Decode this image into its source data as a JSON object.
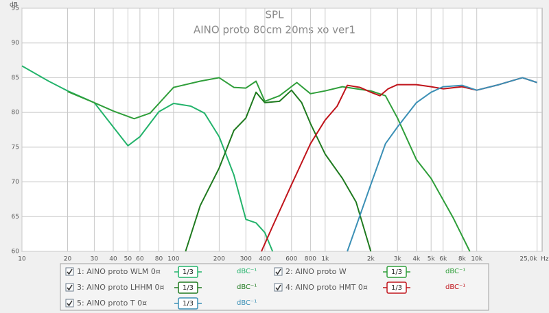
{
  "chart_data": {
    "type": "line",
    "title": "SPL",
    "subtitle": "AINO proto 80cm 20ms xo ver1",
    "y_label": "dB",
    "x_label": "Hz",
    "xscale": "log",
    "grid": true,
    "xlim": [
      10,
      27000
    ],
    "ylim": [
      60,
      95
    ],
    "xticks": [
      10,
      20,
      30,
      40,
      50,
      60,
      80,
      100,
      200,
      300,
      400,
      600,
      800,
      {
        "value": 1000,
        "label": "1k"
      },
      {
        "value": 2000,
        "label": "2k"
      },
      {
        "value": 3000,
        "label": "3k"
      },
      {
        "value": 4000,
        "label": "4k"
      },
      {
        "value": 5000,
        "label": "5k"
      },
      {
        "value": 6000,
        "label": "6k"
      },
      {
        "value": 8000,
        "label": "8k"
      },
      {
        "value": 10000,
        "label": "10k"
      },
      {
        "value": 25000,
        "label": "25,0k"
      }
    ],
    "yticks": [
      60,
      65,
      70,
      75,
      80,
      85,
      90,
      95
    ],
    "series": [
      {
        "name": "1: AINO proto WLM 0¤",
        "color": "#23b36b",
        "smoothing": "1/3",
        "units": "dBC⁻¹",
        "x": [
          10,
          15,
          20,
          30,
          40,
          50,
          60,
          80,
          100,
          130,
          160,
          200,
          250,
          300,
          350,
          400,
          450
        ],
        "values": [
          86.7,
          84.5,
          83.1,
          81.4,
          77.9,
          75.2,
          76.5,
          80.1,
          81.3,
          80.9,
          79.9,
          76.5,
          71.0,
          64.6,
          64.1,
          62.7,
          60
        ]
      },
      {
        "name": "2: AINO proto W",
        "color": "#2f9e3a",
        "smoothing": "1/3",
        "units": "dBC⁻¹",
        "x": [
          20,
          30,
          40,
          55,
          70,
          100,
          150,
          200,
          250,
          300,
          350,
          400,
          500,
          650,
          800,
          1000,
          1300,
          2000,
          2500,
          3000,
          4000,
          5000,
          7000,
          9000
        ],
        "values": [
          83.0,
          81.4,
          80.2,
          79.1,
          79.9,
          83.6,
          84.5,
          85.0,
          83.6,
          83.5,
          84.5,
          81.6,
          82.4,
          84.3,
          82.7,
          83.1,
          83.7,
          83.1,
          82.4,
          79.2,
          73.2,
          70.5,
          64.8,
          60
        ]
      },
      {
        "name": "3: AINO proto LHHM 0¤",
        "color": "#1f7a1f",
        "smoothing": "1/3",
        "units": "dBC⁻¹",
        "x": [
          120,
          150,
          200,
          250,
          300,
          350,
          400,
          500,
          600,
          700,
          800,
          1000,
          1300,
          1600,
          2000
        ],
        "values": [
          60,
          66.6,
          72.0,
          77.4,
          79.2,
          82.9,
          81.4,
          81.6,
          83.2,
          81.4,
          78.4,
          74.0,
          70.5,
          67.1,
          60
        ]
      },
      {
        "name": "4: AINO proto HMT 0¤",
        "color": "#c0141b",
        "smoothing": "1/3",
        "units": "dBC⁻¹",
        "x": [
          380,
          450,
          600,
          800,
          1000,
          1200,
          1400,
          1700,
          2000,
          2300,
          2600,
          3000,
          4000,
          5000,
          6000,
          8000,
          10000,
          14000,
          20000,
          25000
        ],
        "values": [
          60,
          63.6,
          69.6,
          75.5,
          78.9,
          80.9,
          83.9,
          83.6,
          82.9,
          82.4,
          83.4,
          84.0,
          84.0,
          83.7,
          83.4,
          83.7,
          83.2,
          84.0,
          85.0,
          84.3
        ]
      },
      {
        "name": "5: AINO proto T 0¤",
        "color": "#3a8fb5",
        "smoothing": "1/3",
        "units": "dBC⁻¹",
        "x": [
          1400,
          2000,
          2500,
          3000,
          4000,
          5000,
          6000,
          8000,
          10000,
          14000,
          20000,
          25000
        ],
        "values": [
          60,
          69.6,
          75.5,
          77.9,
          81.4,
          82.9,
          83.7,
          83.9,
          83.2,
          84.0,
          85.0,
          84.3
        ]
      }
    ]
  }
}
